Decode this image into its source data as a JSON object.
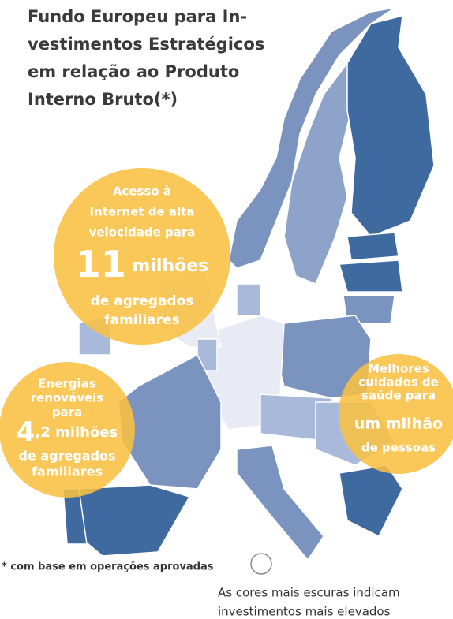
{
  "title_lines": [
    "Fundo Europeu para In-",
    "vestimentos Estratégicos",
    "em relação ao Produto",
    "Interno Bruto(*)"
  ],
  "bubbles": [
    {
      "lines_top": [
        "Acesso à",
        "Internet de alta",
        "velocidade para"
      ],
      "number": "11",
      "unit": "milhões",
      "lines_bottom": [
        "de agregados",
        "familiares"
      ]
    },
    {
      "lines_top": [
        "Energias",
        "renováveis",
        "para"
      ],
      "number": "4",
      "unit": ",2 milhões",
      "lines_bottom": [
        "de agregados",
        "familiares"
      ]
    },
    {
      "lines_top": [
        "Melhores",
        "cuidados de",
        "saúde para"
      ],
      "number": "um milhão",
      "unit": "",
      "lines_bottom": [
        "de pessoas"
      ]
    }
  ],
  "footnote": "* com base em operações aprovadas",
  "legend_lines": [
    "As cores mais escuras indicam",
    "investimentos mais elevados"
  ]
}
